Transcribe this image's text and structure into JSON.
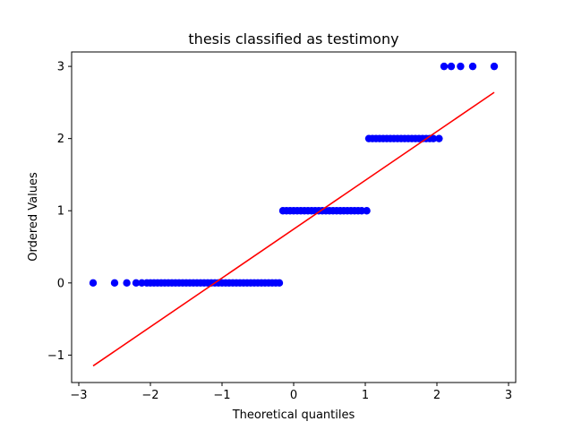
{
  "chart_data": {
    "type": "scatter",
    "title": "thesis classified as testimony",
    "xlabel": "Theoretical quantiles",
    "ylabel": "Ordered Values",
    "xlim": [
      -3.1,
      3.1
    ],
    "ylim": [
      -1.38,
      3.2
    ],
    "xticks": [
      {
        "value": -3,
        "label": "−3"
      },
      {
        "value": -2,
        "label": "−2"
      },
      {
        "value": -1,
        "label": "−1"
      },
      {
        "value": 0,
        "label": "0"
      },
      {
        "value": 1,
        "label": "1"
      },
      {
        "value": 2,
        "label": "2"
      },
      {
        "value": 3,
        "label": "3"
      }
    ],
    "yticks": [
      {
        "value": -1,
        "label": "−1"
      },
      {
        "value": 0,
        "label": "0"
      },
      {
        "value": 1,
        "label": "1"
      },
      {
        "value": 2,
        "label": "2"
      },
      {
        "value": 3,
        "label": "3"
      }
    ],
    "grid": false,
    "colors": {
      "points": "#0000ff",
      "fit_line": "#ff0000"
    },
    "series": [
      {
        "kind": "points",
        "x": [
          -2.8,
          -2.5,
          -2.33,
          -2.2,
          -2.12,
          -2.05,
          -2.0,
          -1.95,
          -1.9,
          -1.85,
          -1.8,
          -1.75,
          -1.7,
          -1.65,
          -1.6,
          -1.55,
          -1.5,
          -1.45,
          -1.4,
          -1.35,
          -1.3,
          -1.25,
          -1.2,
          -1.15,
          -1.1,
          -1.05,
          -1.0,
          -0.95,
          -0.9,
          -0.85,
          -0.8,
          -0.75,
          -0.7,
          -0.65,
          -0.6,
          -0.55,
          -0.5,
          -0.45,
          -0.4,
          -0.35,
          -0.3,
          -0.25,
          -0.2,
          -0.15,
          -0.1,
          -0.05,
          0.0,
          0.05,
          0.1,
          0.15,
          0.2,
          0.25,
          0.3,
          0.35,
          0.4,
          0.45,
          0.5,
          0.55,
          0.6,
          0.65,
          0.7,
          0.75,
          0.8,
          0.85,
          0.9,
          0.95,
          1.02,
          1.05,
          1.1,
          1.15,
          1.2,
          1.25,
          1.3,
          1.35,
          1.4,
          1.45,
          1.5,
          1.55,
          1.6,
          1.65,
          1.7,
          1.75,
          1.8,
          1.85,
          1.9,
          1.95,
          2.03,
          2.1,
          2.2,
          2.33,
          2.5,
          2.8
        ],
        "y": [
          0,
          0,
          0,
          0,
          0,
          0,
          0,
          0,
          0,
          0,
          0,
          0,
          0,
          0,
          0,
          0,
          0,
          0,
          0,
          0,
          0,
          0,
          0,
          0,
          0,
          0,
          0,
          0,
          0,
          0,
          0,
          0,
          0,
          0,
          0,
          0,
          0,
          0,
          0,
          0,
          0,
          0,
          0,
          1,
          1,
          1,
          1,
          1,
          1,
          1,
          1,
          1,
          1,
          1,
          1,
          1,
          1,
          1,
          1,
          1,
          1,
          1,
          1,
          1,
          1,
          1,
          1,
          2,
          2,
          2,
          2,
          2,
          2,
          2,
          2,
          2,
          2,
          2,
          2,
          2,
          2,
          2,
          2,
          2,
          2,
          2,
          2,
          3,
          3,
          3,
          3,
          3
        ]
      },
      {
        "kind": "line",
        "x": [
          -2.8,
          2.8
        ],
        "y": [
          -1.15,
          2.64
        ]
      }
    ]
  }
}
